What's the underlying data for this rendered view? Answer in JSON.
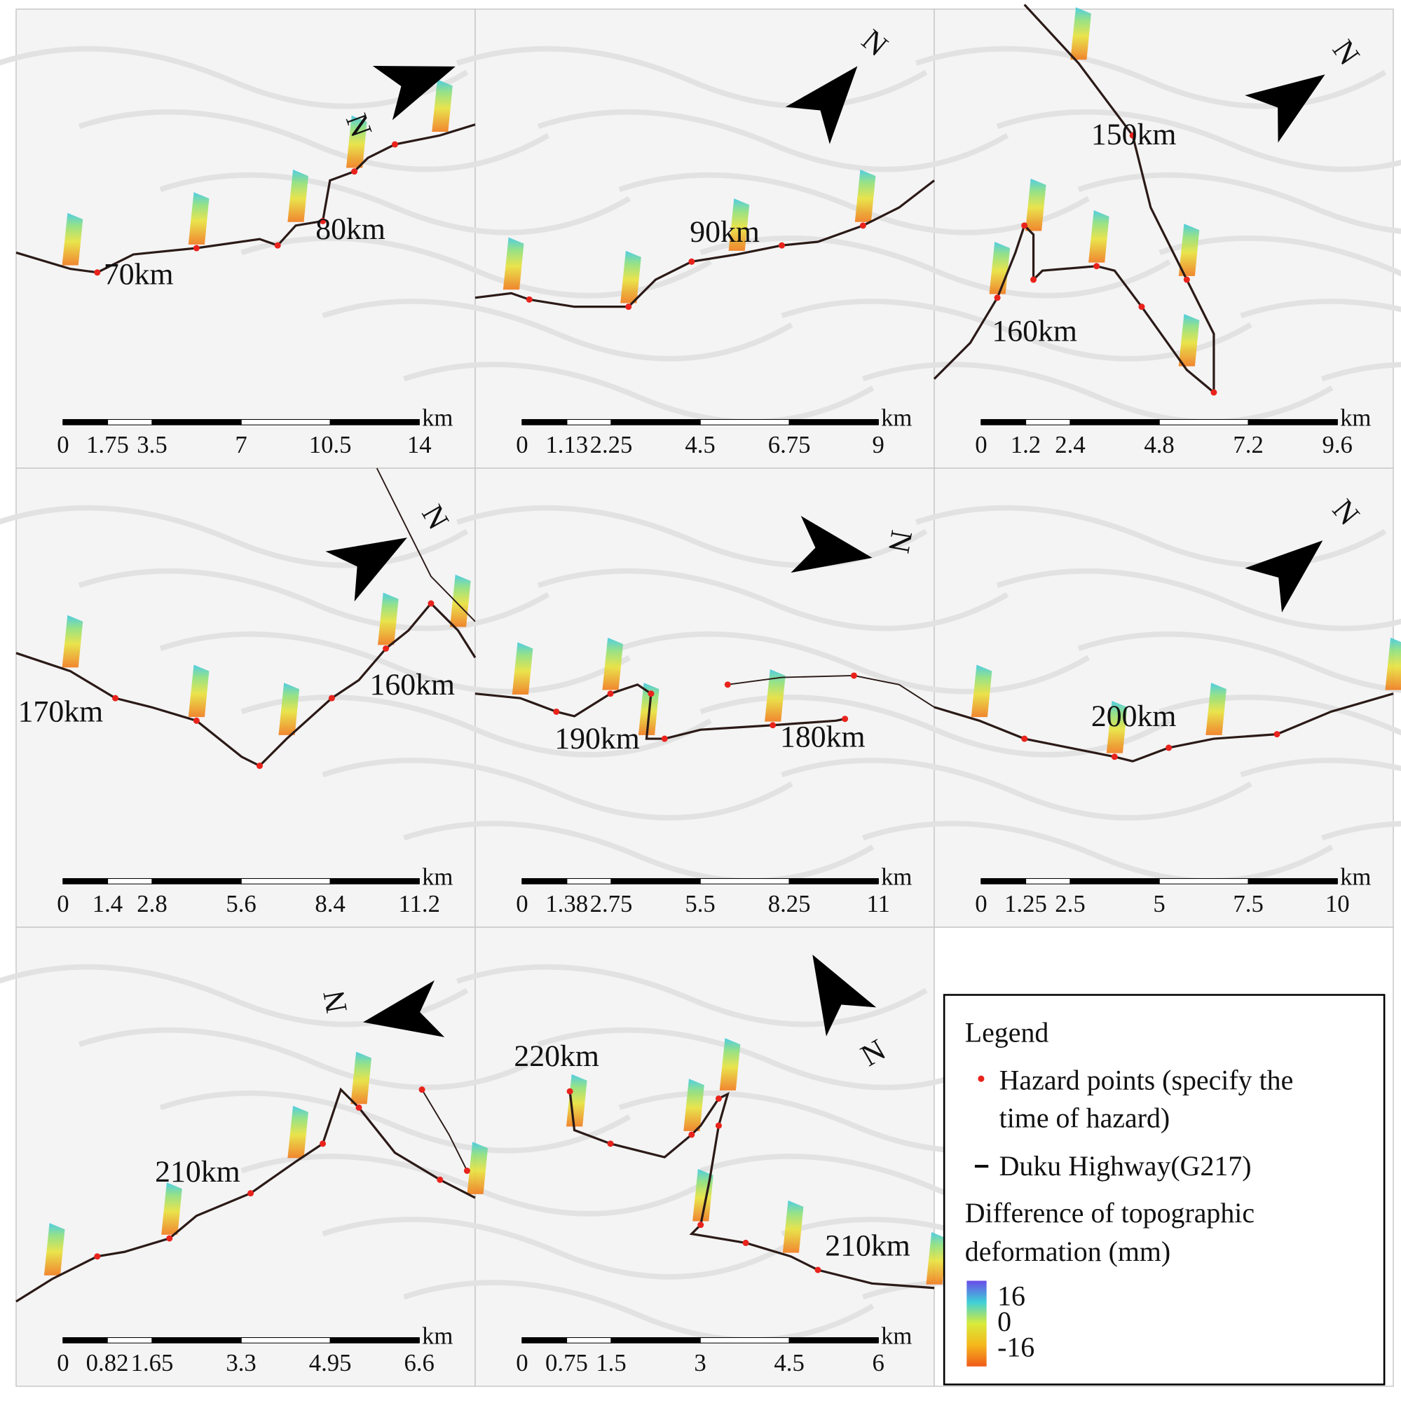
{
  "panels": [
    {
      "labels": [
        "70km",
        "80km"
      ],
      "north": "N",
      "scale": {
        "ticks": [
          0,
          1.75,
          3.5,
          7,
          10.5,
          14
        ],
        "unit": "km"
      }
    },
    {
      "labels": [
        "90km"
      ],
      "north": "N",
      "scale": {
        "ticks": [
          0,
          1.13,
          2.25,
          4.5,
          6.75,
          9
        ],
        "unit": "km"
      }
    },
    {
      "labels": [
        "150km",
        "160km"
      ],
      "north": "N",
      "scale": {
        "ticks": [
          0,
          1.2,
          2.4,
          4.8,
          7.2,
          9.6
        ],
        "unit": "km"
      }
    },
    {
      "labels": [
        "170km",
        "160km"
      ],
      "north": "N",
      "scale": {
        "ticks": [
          0,
          1.4,
          2.8,
          5.6,
          8.4,
          11.2
        ],
        "unit": "km"
      }
    },
    {
      "labels": [
        "190km",
        "180km"
      ],
      "north": "N",
      "scale": {
        "ticks": [
          0,
          1.38,
          2.75,
          5.5,
          8.25,
          11
        ],
        "unit": "km"
      }
    },
    {
      "labels": [
        "200km"
      ],
      "north": "N",
      "scale": {
        "ticks": [
          0,
          1.25,
          2.5,
          5,
          7.5,
          10
        ],
        "unit": "km"
      }
    },
    {
      "labels": [
        "210km"
      ],
      "north": "N",
      "scale": {
        "ticks": [
          0,
          0.82,
          1.65,
          3.3,
          4.95,
          6.6
        ],
        "unit": "km"
      }
    },
    {
      "labels": [
        "220km",
        "210km"
      ],
      "north": "N",
      "scale": {
        "ticks": [
          0,
          0.75,
          1.5,
          3,
          4.5,
          6
        ],
        "unit": "km"
      }
    }
  ],
  "legend": {
    "title": "Legend",
    "hazard": [
      "Hazard points (specify the",
      "time of hazard)"
    ],
    "highway": "Duku Highway(G217)",
    "deformation": [
      "Difference of topographic",
      "deformation (mm)"
    ],
    "colorbar_ticks": [
      16,
      0,
      -16
    ]
  }
}
